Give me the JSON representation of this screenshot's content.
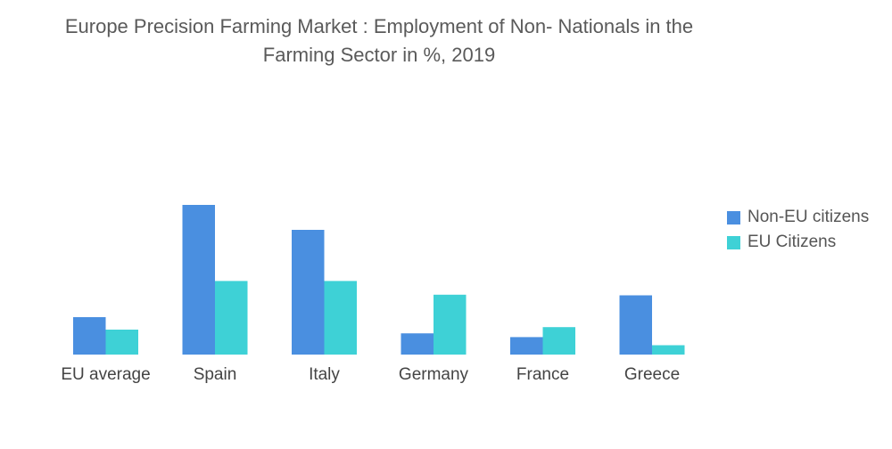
{
  "chart_data": {
    "type": "bar",
    "title": "Europe Precision Farming Market : Employment of Non- Nationals in the Farming Sector in %, 2019",
    "categories": [
      "EU average",
      "Spain",
      "Italy",
      "Germany",
      "France",
      "Greece"
    ],
    "series": [
      {
        "name": "Non-EU citizens",
        "color": "#4a8fe0",
        "values": [
          6.0,
          24.0,
          20.0,
          3.4,
          2.8,
          9.5
        ]
      },
      {
        "name": "EU Citizens",
        "color": "#3ed1d6",
        "values": [
          4.0,
          11.8,
          11.8,
          9.6,
          4.4,
          1.5
        ]
      }
    ],
    "ylim": [
      0,
      24
    ],
    "grid": false,
    "legend": "right"
  }
}
